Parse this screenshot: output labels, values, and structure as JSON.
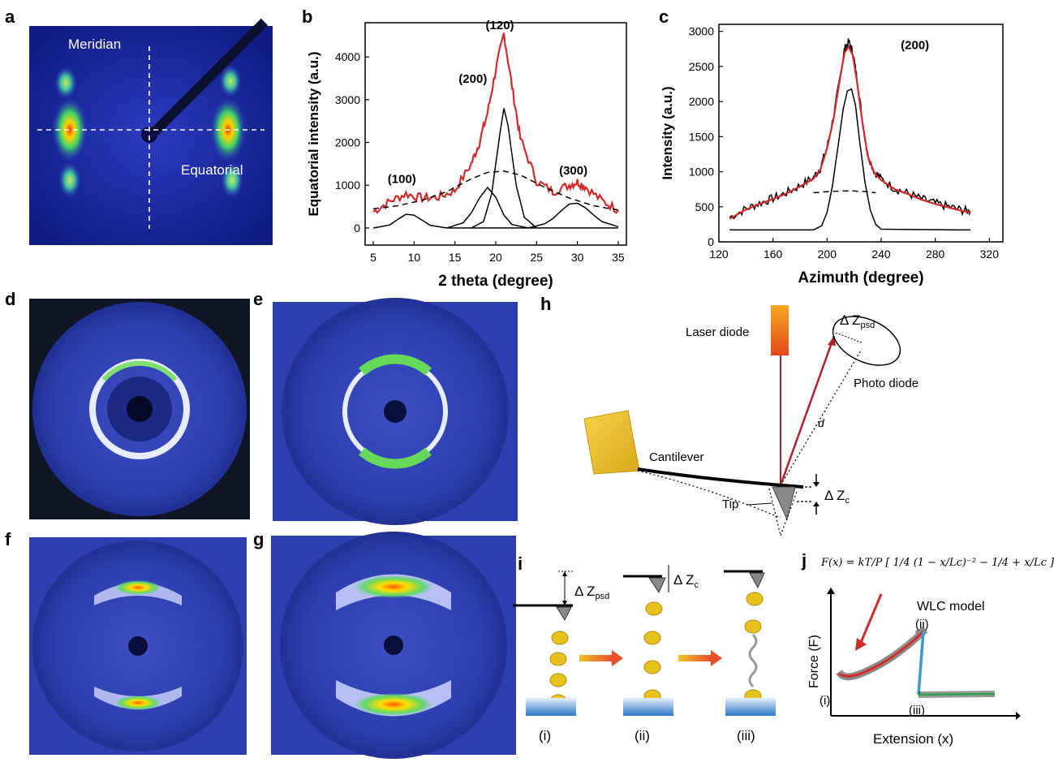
{
  "panels": {
    "a": {
      "letter": "a",
      "meridian_label": "Meridian",
      "equatorial_label": "Equatorial"
    },
    "b": {
      "letter": "b"
    },
    "c": {
      "letter": "c"
    },
    "d": {
      "letter": "d"
    },
    "e": {
      "letter": "e"
    },
    "f": {
      "letter": "f"
    },
    "g": {
      "letter": "g"
    },
    "h": {
      "letter": "h",
      "laser_label": "Laser diode",
      "photo_label": "Photo diode",
      "cantilever_label": "Cantilever",
      "tip_label": "Tip",
      "d_label": "d",
      "dzpsd_main": "Δ Z",
      "dzpsd_sub": "psd",
      "dzc_main": "Δ Z",
      "dzc_sub": "c"
    },
    "i": {
      "letter": "i",
      "dzpsd_main": "Δ Z",
      "dzpsd_sub": "psd",
      "dzc_main": "Δ Z",
      "dzc_sub": "c",
      "step_labels": [
        "(i)",
        "(ii)",
        "(iii)"
      ]
    },
    "j": {
      "letter": "j",
      "formula": "F(x) = kT/P [ 1/4 (1 − x/Lc)⁻² − 1/4 + x/Lc ]",
      "model_label": "WLC model",
      "ylabel": "Force (F)",
      "xlabel": "Extension (x)",
      "point_labels": [
        "(i)",
        "(ii)",
        "(iii)"
      ]
    }
  },
  "chart_data": [
    {
      "panel": "b",
      "type": "line",
      "xlabel": "2 theta (degree)",
      "ylabel": "Equatorial intensity (a.u.)",
      "xlim": [
        4,
        36
      ],
      "ylim": [
        -400,
        4800
      ],
      "xticks": [
        5,
        10,
        15,
        20,
        25,
        30,
        35
      ],
      "yticks": [
        0,
        1000,
        2000,
        3000,
        4000
      ],
      "annotations": [
        {
          "text": "(100)",
          "x": 8.5,
          "y": 1050
        },
        {
          "text": "(200)",
          "x": 17.2,
          "y": 3400
        },
        {
          "text": "(120)",
          "x": 20.5,
          "y": 4650
        },
        {
          "text": "(300)",
          "x": 29.5,
          "y": 1250
        }
      ],
      "series": [
        {
          "color": "#d42a2a",
          "style": "solid-noisy",
          "x": [
            5,
            7,
            9,
            11,
            13,
            15,
            17,
            18,
            19,
            20,
            21,
            22,
            23,
            25,
            27,
            29,
            30,
            31,
            33,
            35
          ],
          "y": [
            380,
            620,
            800,
            700,
            720,
            880,
            1500,
            2000,
            2700,
            3700,
            4550,
            3300,
            2100,
            1100,
            850,
            1000,
            1080,
            960,
            640,
            420
          ]
        },
        {
          "color": "#000000",
          "style": "dashed",
          "x": [
            5,
            8,
            11,
            14,
            17,
            19,
            21,
            23,
            26,
            29,
            32,
            35
          ],
          "y": [
            450,
            520,
            650,
            850,
            1150,
            1300,
            1330,
            1240,
            950,
            700,
            520,
            420
          ]
        },
        {
          "color": "#000000",
          "style": "solid",
          "x": [
            5,
            7,
            8,
            9,
            10,
            11,
            12,
            14,
            35
          ],
          "y": [
            0,
            70,
            200,
            320,
            300,
            180,
            60,
            0,
            0
          ]
        },
        {
          "color": "#000000",
          "style": "solid",
          "x": [
            14,
            16,
            17,
            18,
            19,
            20,
            21,
            22,
            24
          ],
          "y": [
            0,
            120,
            350,
            700,
            950,
            720,
            300,
            80,
            0
          ]
        },
        {
          "color": "#000000",
          "style": "solid",
          "x": [
            17,
            18.5,
            19.5,
            20.5,
            21,
            21.5,
            22.5,
            23.5,
            25
          ],
          "y": [
            0,
            150,
            800,
            2200,
            2800,
            2400,
            1000,
            250,
            0
          ]
        },
        {
          "color": "#000000",
          "style": "solid",
          "x": [
            24,
            26,
            27,
            28,
            29,
            30,
            31,
            32,
            33,
            35
          ],
          "y": [
            0,
            100,
            220,
            400,
            560,
            580,
            470,
            300,
            150,
            30
          ]
        }
      ]
    },
    {
      "panel": "c",
      "type": "line",
      "xlabel": "Azimuth (degree)",
      "ylabel": "Intensity (a.u.)",
      "xlim": [
        120,
        330
      ],
      "ylim": [
        0,
        3100
      ],
      "xticks": [
        120,
        160,
        200,
        240,
        280,
        320
      ],
      "yticks": [
        0,
        500,
        1000,
        1500,
        2000,
        2500,
        3000
      ],
      "annotations": [
        {
          "text": "(200)",
          "x": 265,
          "y": 2750
        }
      ],
      "series": [
        {
          "color": "#000000",
          "style": "noisy",
          "x": [
            128,
            140,
            150,
            160,
            170,
            180,
            190,
            195,
            200,
            205,
            210,
            213,
            216,
            219,
            222,
            226,
            230,
            235,
            240,
            250,
            260,
            270,
            280,
            290,
            300,
            306
          ],
          "y": [
            350,
            470,
            550,
            620,
            700,
            800,
            920,
            1050,
            1350,
            1800,
            2400,
            2750,
            2850,
            2700,
            2350,
            1750,
            1250,
            1000,
            900,
            760,
            690,
            610,
            550,
            500,
            450,
            440
          ]
        },
        {
          "color": "#d42a2a",
          "style": "solid",
          "x": [
            128,
            140,
            150,
            160,
            170,
            180,
            190,
            195,
            200,
            205,
            210,
            213,
            216,
            219,
            222,
            226,
            230,
            235,
            240,
            250,
            260,
            270,
            280,
            290,
            300,
            306
          ],
          "y": [
            330,
            460,
            540,
            610,
            690,
            790,
            900,
            1030,
            1330,
            1780,
            2380,
            2700,
            2780,
            2660,
            2300,
            1720,
            1230,
            980,
            880,
            750,
            680,
            600,
            540,
            490,
            440,
            420
          ]
        },
        {
          "color": "#000000",
          "style": "dashed",
          "x": [
            190,
            200,
            210,
            220,
            230,
            236
          ],
          "y": [
            700,
            715,
            725,
            725,
            715,
            700
          ]
        },
        {
          "color": "#000000",
          "style": "solid",
          "x": [
            128,
            190,
            196,
            200,
            204,
            208,
            212,
            215,
            218,
            221,
            224,
            228,
            232,
            236,
            240,
            306
          ],
          "y": [
            170,
            170,
            230,
            420,
            800,
            1350,
            1900,
            2150,
            2180,
            1950,
            1450,
            850,
            450,
            250,
            180,
            170
          ]
        }
      ]
    }
  ]
}
